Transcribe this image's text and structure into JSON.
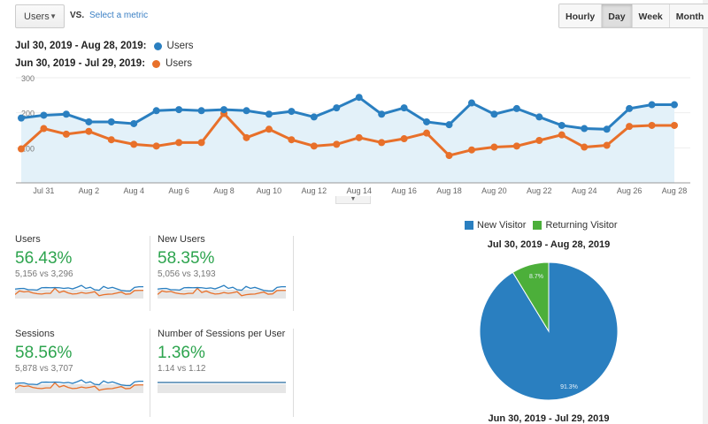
{
  "toolbar": {
    "metric": "Users",
    "vs": "VS.",
    "select_metric": "Select a metric",
    "granularity": [
      "Hourly",
      "Day",
      "Week",
      "Month"
    ],
    "active": "Day"
  },
  "legend": [
    {
      "range": "Jul 30, 2019 - Aug 28, 2019:",
      "metric": "Users",
      "color": "#2a7fc0"
    },
    {
      "range": "Jun 30, 2019 - Jul 29, 2019:",
      "metric": "Users",
      "color": "#e8702a"
    }
  ],
  "chart_data": [
    {
      "type": "line",
      "ylim": [
        0,
        300
      ],
      "yticks": [
        "100",
        "200",
        "300"
      ],
      "xtick_labels": [
        "Jul 31",
        "Aug 2",
        "Aug 4",
        "Aug 6",
        "Aug 8",
        "Aug 10",
        "Aug 12",
        "Aug 14",
        "Aug 16",
        "Aug 18",
        "Aug 20",
        "Aug 22",
        "Aug 24",
        "Aug 26",
        "Aug 28"
      ],
      "x": [
        "Jul 30",
        "Jul 31",
        "Aug 1",
        "Aug 2",
        "Aug 3",
        "Aug 4",
        "Aug 5",
        "Aug 6",
        "Aug 7",
        "Aug 8",
        "Aug 9",
        "Aug 10",
        "Aug 11",
        "Aug 12",
        "Aug 13",
        "Aug 14",
        "Aug 15",
        "Aug 16",
        "Aug 17",
        "Aug 18",
        "Aug 19",
        "Aug 20",
        "Aug 21",
        "Aug 22",
        "Aug 23",
        "Aug 24",
        "Aug 25",
        "Aug 26",
        "Aug 27",
        "Aug 28"
      ],
      "series": [
        {
          "name": "Users",
          "color": "#2a7fc0",
          "values": [
            185,
            193,
            196,
            174,
            174,
            169,
            206,
            209,
            206,
            209,
            206,
            196,
            204,
            188,
            214,
            244,
            196,
            214,
            174,
            166,
            228,
            196,
            212,
            188,
            164,
            155,
            153,
            212,
            223,
            223
          ]
        },
        {
          "name": "Users",
          "color": "#e8702a",
          "values": [
            97,
            155,
            139,
            147,
            123,
            110,
            105,
            115,
            115,
            198,
            129,
            153,
            123,
            105,
            110,
            129,
            115,
            126,
            142,
            78,
            94,
            102,
            105,
            121,
            137,
            102,
            107,
            161,
            164,
            164
          ]
        }
      ],
      "grid": true
    },
    {
      "type": "pie",
      "title": "Jul 30, 2019 - Aug 28, 2019",
      "slices": [
        {
          "name": "New Visitor",
          "value": 91.3,
          "label": "91.3%",
          "color": "#2a7fc0"
        },
        {
          "name": "Returning Visitor",
          "value": 8.7,
          "label": "8.7%",
          "color": "#4caf3a"
        }
      ]
    }
  ],
  "second_pie_title": "Jun 30, 2019 - Jul 29, 2019",
  "cards": [
    {
      "title": "Users",
      "pct": "56.43%",
      "cmp": "5,156 vs 3,296"
    },
    {
      "title": "New Users",
      "pct": "58.35%",
      "cmp": "5,056 vs 3,193"
    },
    {
      "title": "Sessions",
      "pct": "58.56%",
      "cmp": "5,878 vs 3,707"
    },
    {
      "title": "Number of Sessions per User",
      "pct": "1.36%",
      "cmp": "1.14 vs 1.12"
    }
  ]
}
